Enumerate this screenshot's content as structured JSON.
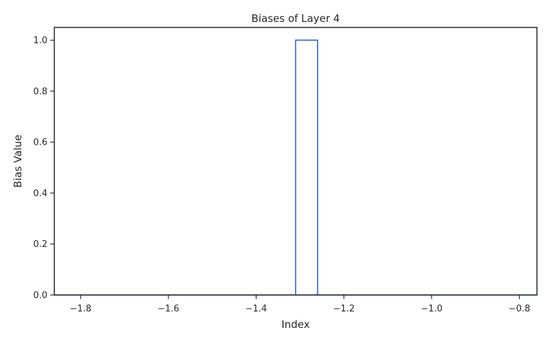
{
  "chart_data": {
    "type": "bar",
    "title": "Biases of Layer 4",
    "xlabel": "Index",
    "ylabel": "Bias Value",
    "xlim": [
      -1.86,
      -0.76
    ],
    "ylim": [
      0,
      1.05
    ],
    "x_ticks": [
      -1.8,
      -1.6,
      -1.4,
      -1.2,
      -1.0,
      -0.8
    ],
    "x_tick_labels": [
      "−1.8",
      "−1.6",
      "−1.4",
      "−1.2",
      "−1.0",
      "−0.8"
    ],
    "y_ticks": [
      0.0,
      0.2,
      0.4,
      0.6,
      0.8,
      1.0
    ],
    "y_tick_labels": [
      "0.0",
      "0.2",
      "0.4",
      "0.6",
      "0.8",
      "1.0"
    ],
    "bars": [
      {
        "x_start": -1.31,
        "x_end": -1.26,
        "value": 1.0
      }
    ],
    "grid": false,
    "bar_style": "step-outline",
    "colors": {
      "bar_edge": "#4c72b0",
      "axes": "#262626",
      "background": "#ffffff"
    }
  }
}
